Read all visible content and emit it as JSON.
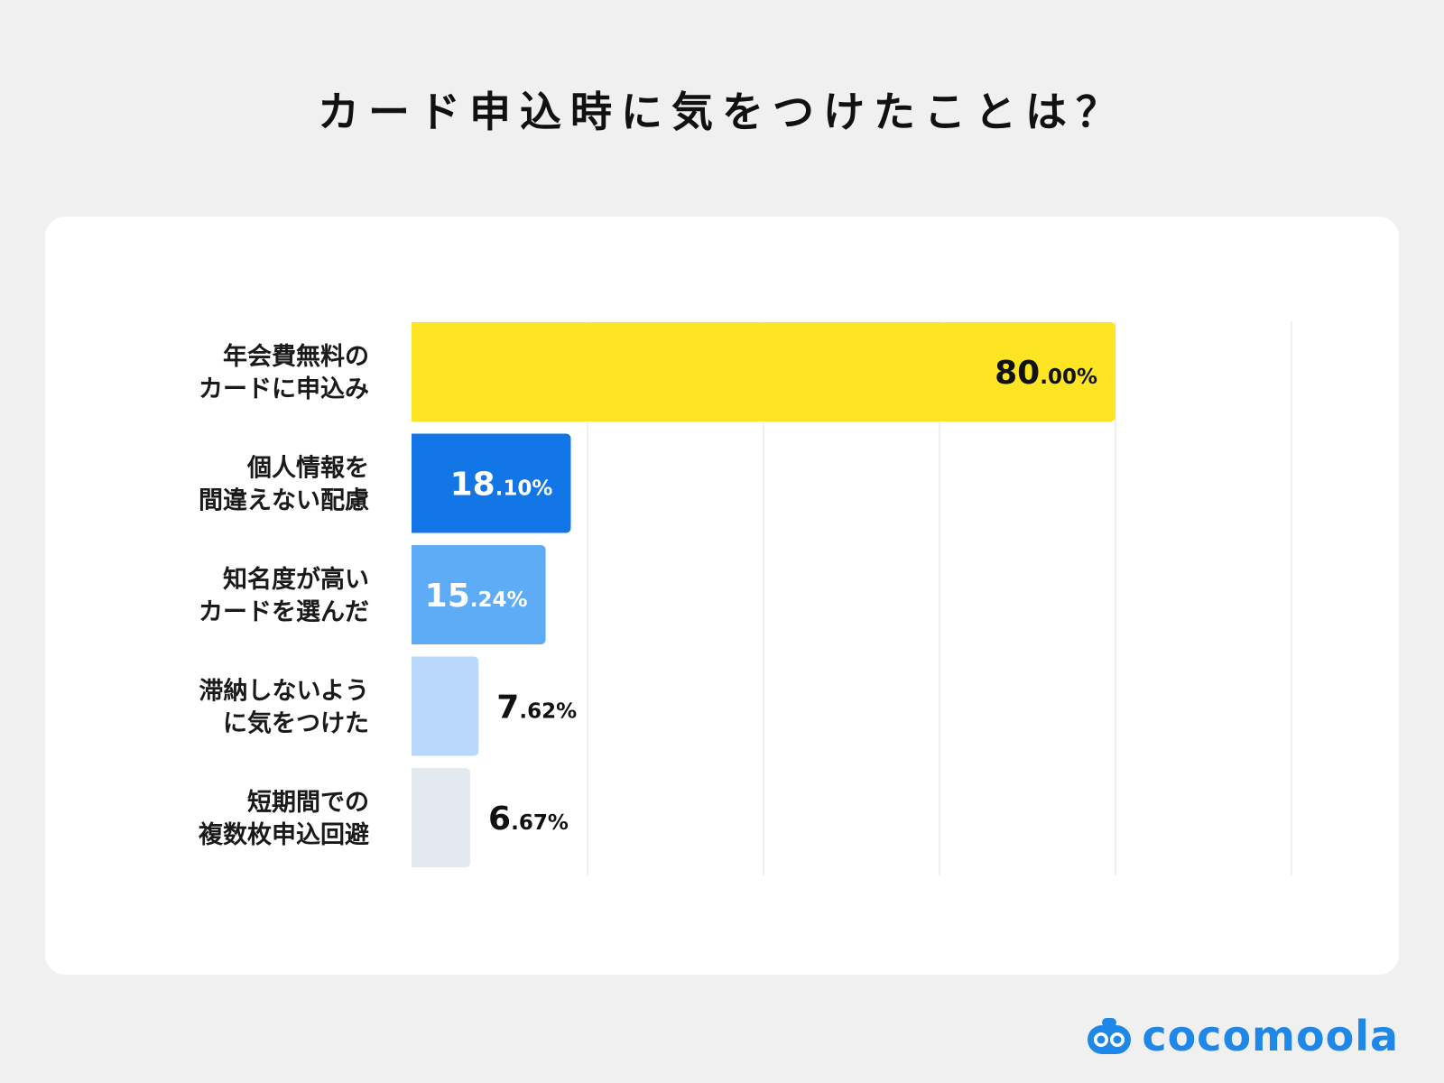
{
  "title": "カード申込時に気をつけたことは？",
  "brand": {
    "name": "cocomoola",
    "logo_icon": "cocomoola-logo-icon",
    "color": "#1f87e8"
  },
  "colors": {
    "page_background": "#f0f0f0",
    "card_background": "#ffffff",
    "grid": "#f0f0f0"
  },
  "chart_data": {
    "type": "bar",
    "orientation": "horizontal",
    "xlim": [
      0,
      100
    ],
    "grid": true,
    "categories": [
      "年会費無料の\nカードに申込み",
      "個人情報を\n間違えない配慮",
      "知名度が高い\nカードを選んだ",
      "滞納しないよう\nに気をつけた",
      "短期間での\n複数枚申込回避"
    ],
    "values": [
      80.0,
      18.1,
      15.24,
      7.62,
      6.67
    ],
    "value_labels": [
      {
        "int": "80",
        "dec": ".00%"
      },
      {
        "int": "18",
        "dec": ".10%"
      },
      {
        "int": "15",
        "dec": ".24%"
      },
      {
        "int": "7",
        "dec": ".62%"
      },
      {
        "int": "6",
        "dec": ".67%"
      }
    ],
    "bar_colors": [
      "#fde523",
      "#1276e6",
      "#5eabf6",
      "#b9d8fb",
      "#e4e8ef"
    ],
    "label_colors": [
      "#111111",
      "#ffffff",
      "#ffffff",
      "#111111",
      "#111111"
    ]
  }
}
